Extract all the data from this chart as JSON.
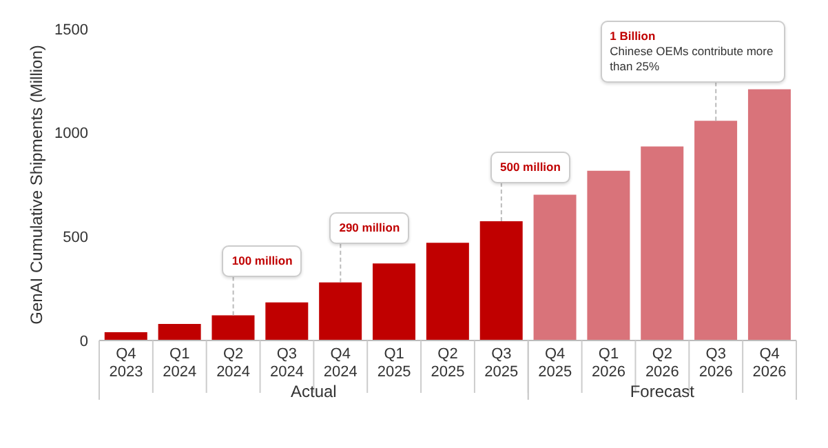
{
  "chart_data": {
    "type": "bar",
    "ylabel": "GenAI Cumulative Shipments (Million)",
    "categories": [
      "Q4 2023",
      "Q1 2024",
      "Q2 2024",
      "Q3 2024",
      "Q4 2024",
      "Q1 2025",
      "Q2 2025",
      "Q3 2025",
      "Q4 2025",
      "Q1 2026",
      "Q2 2026",
      "Q3 2026",
      "Q4 2026"
    ],
    "values": [
      40,
      80,
      121,
      183,
      280,
      371,
      470,
      574,
      702,
      817,
      934,
      1058,
      1210
    ],
    "colors": [
      "#c00000",
      "#c00000",
      "#c00000",
      "#c00000",
      "#c00000",
      "#c00000",
      "#c00000",
      "#c00000",
      "#d9737a",
      "#d9737a",
      "#d9737a",
      "#d9737a",
      "#d9737a"
    ],
    "ylim": [
      0,
      1500
    ],
    "yticks": [
      0,
      500,
      1000,
      1500
    ],
    "grid": false,
    "annotations": [
      {
        "text": "100 million",
        "x": "Q2 2024",
        "y": 121
      },
      {
        "text": "290 million",
        "x": "Q4 2024",
        "y": 280
      },
      {
        "text": "500 million",
        "x": "Q3 2025",
        "y": 574
      },
      {
        "text": "1 Billion\nChinese OEMs contribute more than 25%",
        "x": "Q3 2026",
        "y": 1058
      },
      "Actual",
      "Forecast"
    ]
  }
}
